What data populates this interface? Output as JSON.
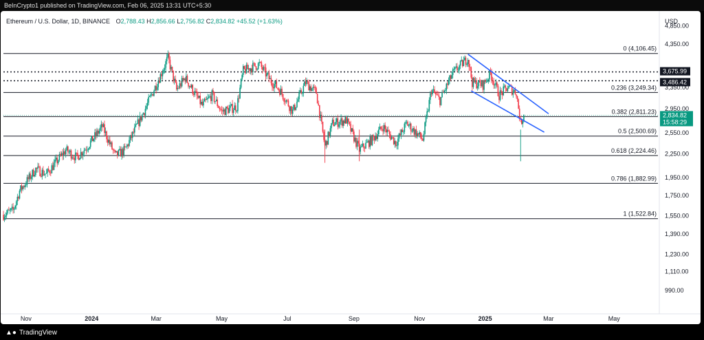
{
  "header": {
    "publisher_line": "BeInCrypto1 published on TradingView.com, Feb 06, 2025 13:31 UTC+5:30"
  },
  "legend": {
    "symbol": "Ethereum / U.S. Dollar, 1D, BINANCE",
    "o_label": "O",
    "o_value": "2,788.43",
    "h_label": "H",
    "h_value": "2,856.66",
    "l_label": "L",
    "l_value": "2,756.82",
    "c_label": "C",
    "c_value": "2,834.82",
    "change": "+45.52 (+1.63%)"
  },
  "footer": {
    "brand": "TradingView"
  },
  "colors": {
    "up": "#089981",
    "down": "#f23645",
    "trendline": "#2962ff",
    "fib_line": "#131722",
    "price_tag": "#089981"
  },
  "chart_data": {
    "type": "candlestick",
    "title": "",
    "xlabel": "",
    "ylabel": "",
    "currency_label": "USD",
    "y_scale": "log",
    "ylim": [
      860,
      5300
    ],
    "y_ticks": [
      {
        "value": 4850,
        "label": "4,850.00"
      },
      {
        "value": 4350,
        "label": "4,350.00"
      },
      {
        "value": 3350,
        "label": "3,350.00"
      },
      {
        "value": 2950,
        "label": "2,950.00"
      },
      {
        "value": 2550,
        "label": "2,550.00"
      },
      {
        "value": 2250,
        "label": "2,250.00"
      },
      {
        "value": 1950,
        "label": "1,950.00"
      },
      {
        "value": 1750,
        "label": "1,750.00"
      },
      {
        "value": 1550,
        "label": "1,550.00"
      },
      {
        "value": 1390,
        "label": "1,390.00"
      },
      {
        "value": 1230,
        "label": "1,230.00"
      },
      {
        "value": 1110,
        "label": "1,110.00"
      },
      {
        "value": 990,
        "label": "990.00"
      }
    ],
    "x_range": [
      "2023-10-11",
      "2025-06-12"
    ],
    "x_ticks": [
      {
        "date": "2023-11-01",
        "label": "Nov",
        "bold": false
      },
      {
        "date": "2024-01-01",
        "label": "2024",
        "bold": true
      },
      {
        "date": "2024-03-01",
        "label": "Mar",
        "bold": false
      },
      {
        "date": "2024-05-01",
        "label": "May",
        "bold": false
      },
      {
        "date": "2024-07-01",
        "label": "Jul",
        "bold": false
      },
      {
        "date": "2024-09-01",
        "label": "Sep",
        "bold": false
      },
      {
        "date": "2024-11-01",
        "label": "Nov",
        "bold": false
      },
      {
        "date": "2025-01-01",
        "label": "2025",
        "bold": true
      },
      {
        "date": "2025-03-01",
        "label": "Mar",
        "bold": false
      },
      {
        "date": "2025-05-01",
        "label": "May",
        "bold": false
      }
    ],
    "fib_levels": [
      {
        "ratio": "0",
        "value": 4106.45,
        "label": "0 (4,106.45)"
      },
      {
        "ratio": "0.236",
        "value": 3249.34,
        "label": "0.236 (3,249.34)"
      },
      {
        "ratio": "0.382",
        "value": 2811.23,
        "label": "0.382 (2,811.23)"
      },
      {
        "ratio": "0.5",
        "value": 2500.69,
        "label": "0.5 (2,500.69)"
      },
      {
        "ratio": "0.618",
        "value": 2224.46,
        "label": "0.618 (2,224.46)"
      },
      {
        "ratio": "0.786",
        "value": 1882.99,
        "label": "0.786 (1,882.99)"
      },
      {
        "ratio": "1",
        "value": 1522.84,
        "label": "1 (1,522.84)"
      }
    ],
    "horizontal_lines": [
      {
        "value": 3675.99,
        "label": "3,675.99",
        "style": "dotted"
      },
      {
        "value": 3486.42,
        "label": "3,486.42",
        "style": "dotted"
      }
    ],
    "current_price": {
      "value": 2834.82,
      "label": "2,834.82",
      "countdown": "15:58:29"
    },
    "trendlines": [
      {
        "start": {
          "date": "2024-12-16",
          "value": 4090
        },
        "end": {
          "date": "2025-03-01",
          "value": 2860
        }
      },
      {
        "start": {
          "date": "2024-12-19",
          "value": 3280
        },
        "end": {
          "date": "2025-02-25",
          "value": 2560
        }
      }
    ],
    "anchors": [
      {
        "date": "2023-10-11",
        "value": 1560
      },
      {
        "date": "2023-10-20",
        "value": 1600
      },
      {
        "date": "2023-10-26",
        "value": 1800
      },
      {
        "date": "2023-11-10",
        "value": 2050
      },
      {
        "date": "2023-11-20",
        "value": 1990
      },
      {
        "date": "2023-12-08",
        "value": 2300
      },
      {
        "date": "2023-12-18",
        "value": 2200
      },
      {
        "date": "2023-12-28",
        "value": 2350
      },
      {
        "date": "2024-01-11",
        "value": 2650
      },
      {
        "date": "2024-01-23",
        "value": 2220
      },
      {
        "date": "2024-02-01",
        "value": 2300
      },
      {
        "date": "2024-02-20",
        "value": 2950
      },
      {
        "date": "2024-03-05",
        "value": 3600
      },
      {
        "date": "2024-03-12",
        "value": 4000
      },
      {
        "date": "2024-03-20",
        "value": 3300
      },
      {
        "date": "2024-03-28",
        "value": 3550
      },
      {
        "date": "2024-04-13",
        "value": 3000
      },
      {
        "date": "2024-04-22",
        "value": 3200
      },
      {
        "date": "2024-05-01",
        "value": 2900
      },
      {
        "date": "2024-05-15",
        "value": 2980
      },
      {
        "date": "2024-05-21",
        "value": 3700
      },
      {
        "date": "2024-06-05",
        "value": 3850
      },
      {
        "date": "2024-06-15",
        "value": 3500
      },
      {
        "date": "2024-06-24",
        "value": 3300
      },
      {
        "date": "2024-07-06",
        "value": 2900
      },
      {
        "date": "2024-07-18",
        "value": 3450
      },
      {
        "date": "2024-07-28",
        "value": 3250
      },
      {
        "date": "2024-08-05",
        "value": 2350
      },
      {
        "date": "2024-08-12",
        "value": 2700
      },
      {
        "date": "2024-08-25",
        "value": 2750
      },
      {
        "date": "2024-09-06",
        "value": 2300
      },
      {
        "date": "2024-09-18",
        "value": 2450
      },
      {
        "date": "2024-09-28",
        "value": 2650
      },
      {
        "date": "2024-10-10",
        "value": 2400
      },
      {
        "date": "2024-10-20",
        "value": 2700
      },
      {
        "date": "2024-11-04",
        "value": 2450
      },
      {
        "date": "2024-11-12",
        "value": 3300
      },
      {
        "date": "2024-11-20",
        "value": 3100
      },
      {
        "date": "2024-12-02",
        "value": 3650
      },
      {
        "date": "2024-12-16",
        "value": 4000
      },
      {
        "date": "2024-12-20",
        "value": 3450
      },
      {
        "date": "2024-12-30",
        "value": 3400
      },
      {
        "date": "2025-01-06",
        "value": 3650
      },
      {
        "date": "2025-01-14",
        "value": 3200
      },
      {
        "date": "2025-01-22",
        "value": 3350
      },
      {
        "date": "2025-01-30",
        "value": 3250
      },
      {
        "date": "2025-02-03",
        "value": 2700
      },
      {
        "date": "2025-02-06",
        "value": 2834.82
      }
    ]
  }
}
